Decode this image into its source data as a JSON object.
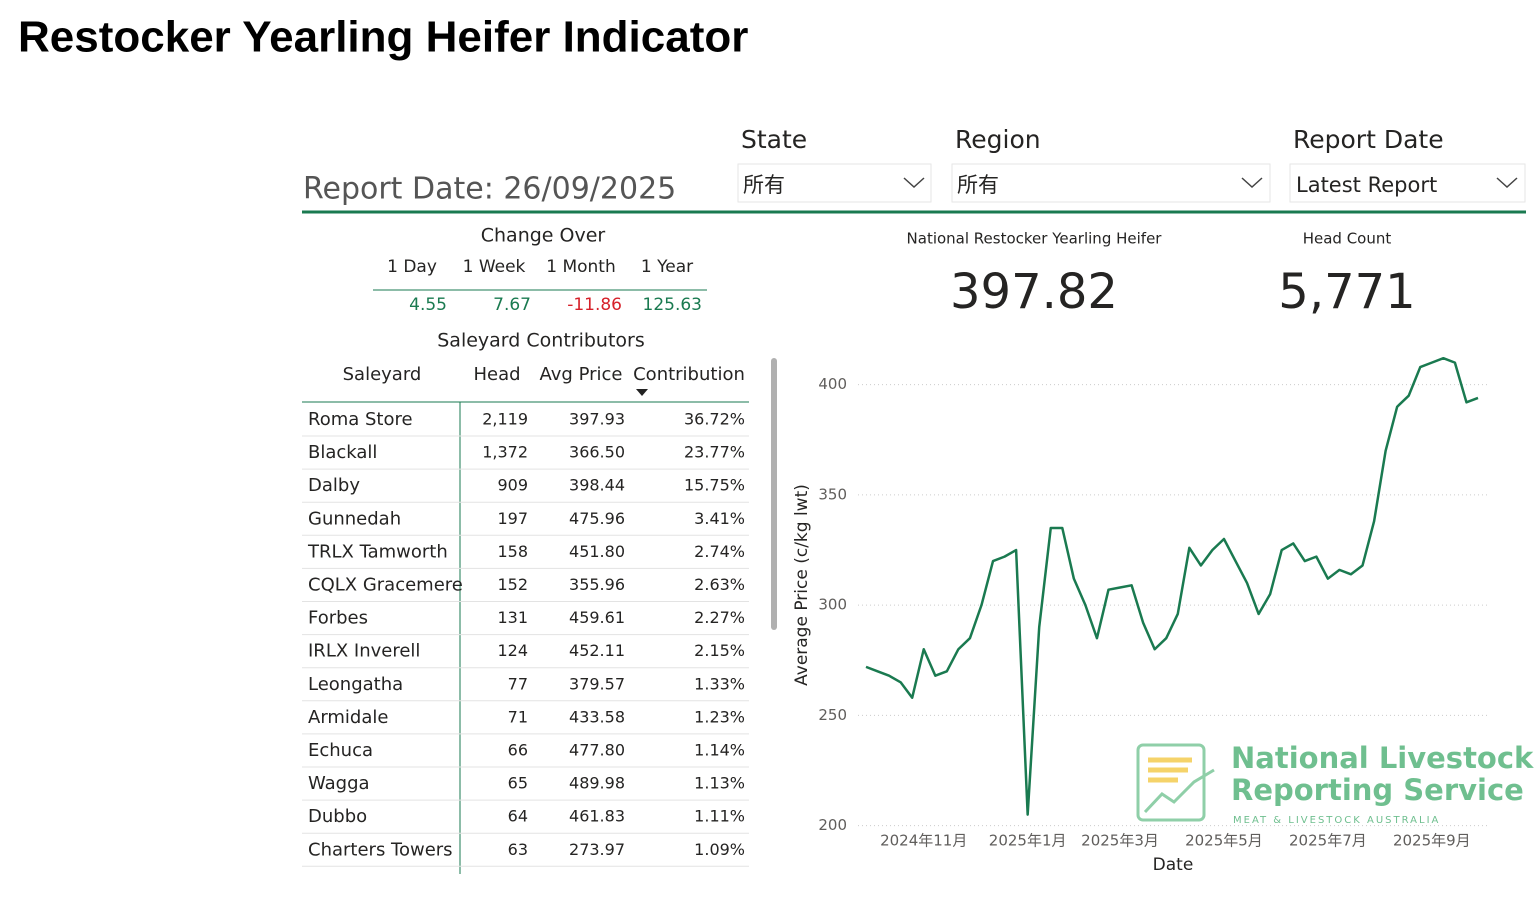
{
  "header": {
    "title": "Restocker Yearling Heifer Indicator"
  },
  "filters": [
    {
      "label": "State",
      "value": "所有"
    },
    {
      "label": "Region",
      "value": "所有"
    },
    {
      "label": "Report Date",
      "value": "Latest Report"
    }
  ],
  "report_date_label": "Report Date: 26/09/2025",
  "change_over": {
    "title": "Change Over",
    "columns": [
      "1 Day",
      "1 Week",
      "1 Month",
      "1 Year"
    ],
    "values": [
      4.55,
      7.67,
      -11.86,
      125.63
    ]
  },
  "kpis": [
    {
      "label": "National Restocker Yearling Heifer",
      "value": "397.82"
    },
    {
      "label": "Head Count",
      "value": "5,771"
    }
  ],
  "saleyards": {
    "title": "Saleyard Contributors",
    "columns": [
      "Saleyard",
      "Head",
      "Avg Price",
      "Contribution"
    ],
    "rows": [
      [
        "Roma Store",
        "2,119",
        "397.93",
        "36.72%"
      ],
      [
        "Blackall",
        "1,372",
        "366.50",
        "23.77%"
      ],
      [
        "Dalby",
        "909",
        "398.44",
        "15.75%"
      ],
      [
        "Gunnedah",
        "197",
        "475.96",
        "3.41%"
      ],
      [
        "TRLX Tamworth",
        "158",
        "451.80",
        "2.74%"
      ],
      [
        "CQLX Gracemere",
        "152",
        "355.96",
        "2.63%"
      ],
      [
        "Forbes",
        "131",
        "459.61",
        "2.27%"
      ],
      [
        "IRLX Inverell",
        "124",
        "452.11",
        "2.15%"
      ],
      [
        "Leongatha",
        "77",
        "379.57",
        "1.33%"
      ],
      [
        "Armidale",
        "71",
        "433.58",
        "1.23%"
      ],
      [
        "Echuca",
        "66",
        "477.80",
        "1.14%"
      ],
      [
        "Wagga",
        "65",
        "489.98",
        "1.13%"
      ],
      [
        "Dubbo",
        "64",
        "461.83",
        "1.11%"
      ],
      [
        "Charters Towers",
        "63",
        "273.97",
        "1.09%"
      ]
    ]
  },
  "logo": [
    "National Livestock",
    "Reporting Service",
    "MEAT & LIVESTOCK AUSTRALIA"
  ],
  "chart_data": {
    "type": "line",
    "x_label": "Date",
    "y_label": "Average Price (c/kg lwt)",
    "color": "#1a7a50",
    "grid": true,
    "ylim": [
      198,
      418
    ],
    "yticks": [
      200,
      250,
      300,
      350,
      400
    ],
    "categories": [
      null,
      null,
      null,
      null,
      null,
      "2024年11月",
      null,
      null,
      null,
      null,
      null,
      null,
      null,
      null,
      "2025年1月",
      null,
      null,
      null,
      null,
      null,
      null,
      null,
      "2025年3月",
      null,
      null,
      null,
      null,
      null,
      null,
      null,
      null,
      "2025年5月",
      null,
      null,
      null,
      null,
      null,
      null,
      null,
      null,
      "2025年7月",
      null,
      null,
      null,
      null,
      null,
      null,
      null,
      null,
      "2025年9月",
      null,
      null,
      null,
      null
    ],
    "values": [
      272,
      270,
      268,
      265,
      258,
      280,
      268,
      270,
      280,
      285,
      300,
      320,
      322,
      325,
      205,
      290,
      335,
      335,
      312,
      300,
      285,
      307,
      308,
      309,
      292,
      280,
      285,
      296,
      326,
      318,
      325,
      330,
      320,
      310,
      296,
      305,
      325,
      328,
      320,
      322,
      312,
      316,
      314,
      318,
      338,
      370,
      390,
      395,
      408,
      410,
      412,
      410,
      392,
      394
    ]
  }
}
